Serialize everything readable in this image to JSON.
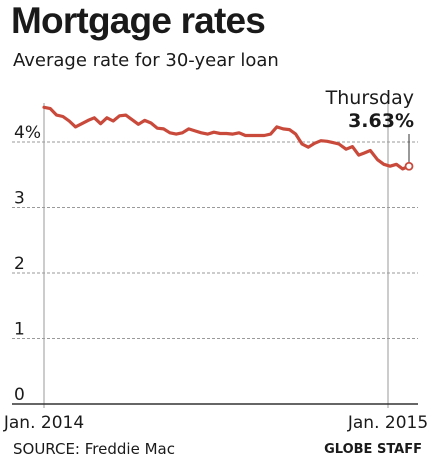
{
  "title": "Mortgage rates",
  "subtitle": "Average rate for 30-year loan",
  "source": "SOURCE: Freddie Mac",
  "credit": "GLOBE STAFF",
  "chart_data": {
    "type": "line",
    "title": "Mortgage rates",
    "subtitle": "Average rate for 30-year loan",
    "ylim": [
      0,
      4.6
    ],
    "yticks": [
      {
        "value": 0,
        "label": "0"
      },
      {
        "value": 1,
        "label": "1"
      },
      {
        "value": 2,
        "label": "2"
      },
      {
        "value": 3,
        "label": "3"
      },
      {
        "value": 4,
        "label": "4%"
      }
    ],
    "xlim": [
      "2014-01-02",
      "2015-02-12"
    ],
    "xticks": [
      {
        "value": "2014-01-02",
        "label": "Jan. 2014"
      },
      {
        "value": "2015-01-01",
        "label": "Jan. 2015"
      }
    ],
    "grid": true,
    "line_color": "#c9493b",
    "series": [
      {
        "x": [
          "2014-01-02",
          "2014-01-09",
          "2014-01-16",
          "2014-01-23",
          "2014-01-30",
          "2014-02-06",
          "2014-02-13",
          "2014-02-20",
          "2014-02-27",
          "2014-03-06",
          "2014-03-13",
          "2014-03-20",
          "2014-03-27",
          "2014-04-03",
          "2014-04-10",
          "2014-04-17",
          "2014-04-24",
          "2014-05-01",
          "2014-05-08",
          "2014-05-15",
          "2014-05-22",
          "2014-05-29",
          "2014-06-05",
          "2014-06-12",
          "2014-06-19",
          "2014-06-26",
          "2014-07-03",
          "2014-07-10",
          "2014-07-17",
          "2014-07-24",
          "2014-07-31",
          "2014-08-07",
          "2014-08-14",
          "2014-08-21",
          "2014-08-28",
          "2014-09-04",
          "2014-09-11",
          "2014-09-18",
          "2014-09-25",
          "2014-10-02",
          "2014-10-09",
          "2014-10-16",
          "2014-10-23",
          "2014-10-30",
          "2014-11-06",
          "2014-11-13",
          "2014-11-20",
          "2014-11-26",
          "2014-12-04",
          "2014-12-11",
          "2014-12-18",
          "2014-12-24",
          "2014-12-31",
          "2015-01-08",
          "2015-01-15",
          "2015-01-22",
          "2015-01-29",
          "2015-02-05",
          "2015-02-12"
        ],
        "y": [
          4.53,
          4.51,
          4.41,
          4.39,
          4.32,
          4.23,
          4.28,
          4.33,
          4.37,
          4.28,
          4.37,
          4.32,
          4.4,
          4.41,
          4.34,
          4.27,
          4.33,
          4.29,
          4.21,
          4.2,
          4.14,
          4.12,
          4.14,
          4.2,
          4.17,
          4.14,
          4.12,
          4.15,
          4.13,
          4.13,
          4.12,
          4.14,
          4.1,
          4.1,
          4.1,
          4.1,
          4.12,
          4.23,
          4.2,
          4.19,
          4.12,
          3.97,
          3.92,
          3.98,
          4.02,
          4.01,
          3.99,
          3.97,
          3.89,
          3.93,
          3.8,
          3.83,
          3.87,
          3.73,
          3.66,
          3.63,
          3.66,
          3.59,
          3.63
        ]
      }
    ],
    "annotation": {
      "label": "Thursday",
      "value_label": "3.63%",
      "x": "2015-02-12",
      "y": 3.63
    }
  }
}
